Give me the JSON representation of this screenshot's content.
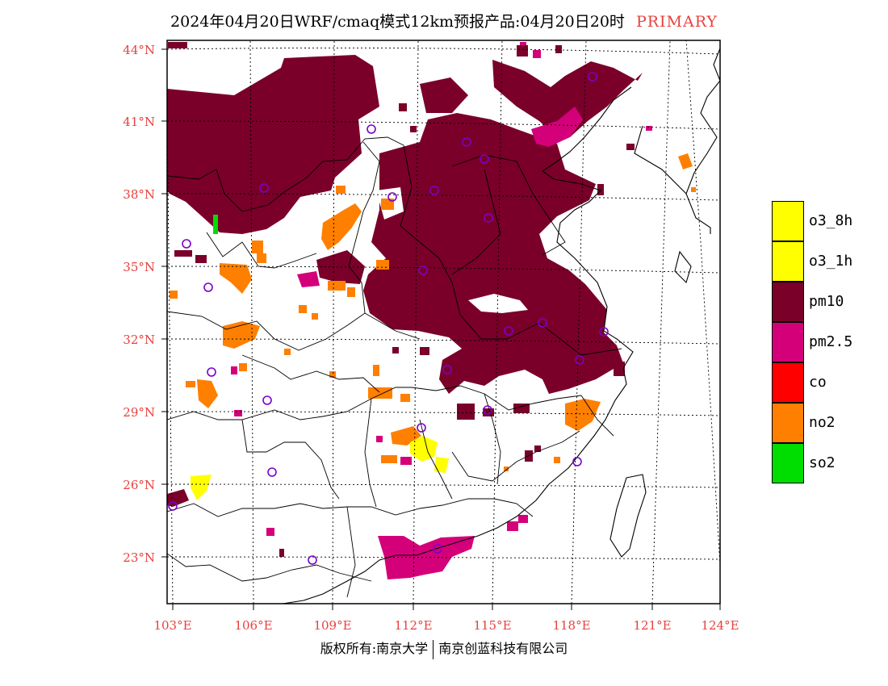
{
  "title": {
    "main": "2024年04月20日WRF/cmaq模式12km预报产品:04月20日20时",
    "tag": "PRIMARY"
  },
  "axes": {
    "lat_ticks": [
      "44°N",
      "41°N",
      "38°N",
      "35°N",
      "32°N",
      "29°N",
      "26°N",
      "23°N"
    ],
    "lon_ticks": [
      "103°E",
      "106°E",
      "109°E",
      "112°E",
      "115°E",
      "118°E",
      "121°E",
      "124°E"
    ]
  },
  "legend": {
    "items": [
      {
        "label": "o3_8h",
        "color": "#ffff00"
      },
      {
        "label": "o3_1h",
        "color": "#ffff00"
      },
      {
        "label": "pm10",
        "color": "#7a0029"
      },
      {
        "label": "pm2.5",
        "color": "#d4007a"
      },
      {
        "label": "co",
        "color": "#ff0000"
      },
      {
        "label": "no2",
        "color": "#ff7f00"
      },
      {
        "label": "so2",
        "color": "#00dd00"
      }
    ]
  },
  "footer": {
    "left": "版权所有:南京大学",
    "right": "南京创蓝科技有限公司"
  },
  "colors": {
    "pm10": "#7a0029",
    "pm25": "#d4007a",
    "no2": "#ff7f00",
    "o3": "#ffff00",
    "so2": "#00dd00",
    "station": "#7a00c8",
    "tick_text": "#e8413e"
  }
}
